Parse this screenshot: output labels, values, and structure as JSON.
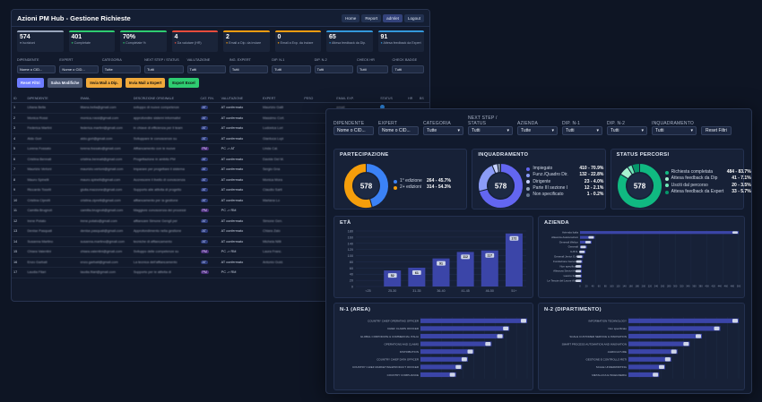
{
  "app": {
    "title": "Azioni PM Hub - Gestione Richieste",
    "nav": [
      "Home",
      "Report",
      "admlet",
      "Logout"
    ],
    "accent": "#6d7cff"
  },
  "cards": [
    {
      "value": "574",
      "label": "Iscrizioni",
      "color": "#9aa6bd"
    },
    {
      "value": "401",
      "label": "Completate",
      "color": "#2ecc71"
    },
    {
      "value": "70%",
      "label": "Completate %",
      "color": "#2ecc71"
    },
    {
      "value": "4",
      "label": "Da valutare (HR)",
      "color": "#e74c3c"
    },
    {
      "value": "2",
      "label": "Email a Dip. da inviare",
      "color": "#f39c12"
    },
    {
      "value": "0",
      "label": "Email a Exp. da inviare",
      "color": "#f39c12"
    },
    {
      "value": "65",
      "label": "Attesa feedback da Dip.",
      "color": "#3498db"
    },
    {
      "value": "91",
      "label": "Attesa feedback da Expert",
      "color": "#3498db"
    }
  ],
  "filters1": [
    {
      "label": "DIPENDENTE",
      "value": "Nome o CID..."
    },
    {
      "label": "EXPERT",
      "value": "Nome o CID..."
    },
    {
      "label": "CATEGORIA",
      "value": "Tutte"
    },
    {
      "label": "NEXT STEP / STATUS",
      "value": "Tutti"
    },
    {
      "label": "VALUTAZIONE",
      "value": "Tutti"
    },
    {
      "label": "ING. EXPERT",
      "value": "Tutti"
    },
    {
      "label": "DIP. N-1",
      "value": "Tutti"
    },
    {
      "label": "DIP. N-2",
      "value": "Tutti"
    },
    {
      "label": "CHECK HR",
      "value": "Tutti"
    },
    {
      "label": "CHECK BADGE",
      "value": "Tutti"
    }
  ],
  "actions": [
    {
      "label": "Reset Filtri",
      "color": "#6d7cff"
    },
    {
      "label": "Salva Modifiche",
      "color": "#4a5670"
    },
    {
      "label": "Invia Mail a Dip.",
      "color": "#f0a93b"
    },
    {
      "label": "Invia Mail a Expert",
      "color": "#f0a93b"
    },
    {
      "label": "Export Excel",
      "color": "#2ecc71"
    }
  ],
  "table": {
    "headers": [
      "ID",
      "DIPENDENTE",
      "EMAIL",
      "DESCRIZIONE ORIGINALE",
      "CAT. FIN.",
      "VALUTAZIONE",
      "EXPERT",
      "PESO",
      "EMAIL EXP.",
      "STATUS",
      "HR",
      "BS"
    ],
    "rows": [
      [
        "1",
        "Liliana Bella",
        "liliana.bella@gmail.com",
        "sviluppo di nuove competenze",
        "AT",
        "AT confermato",
        "Maurizio Galli",
        "",
        "email",
        "#2e86de"
      ],
      [
        "2",
        "Monica Rossi",
        "monica.rossi@gmail.com",
        "approfondire sistemi informativi",
        "AT",
        "AT confermato",
        "Massimo Cort.",
        "",
        "email",
        "#2ecc71"
      ],
      [
        "3",
        "Federica Martini",
        "federica.martini@gmail.com",
        "in chiave di efficienza per il team",
        "AT",
        "AT confermato",
        "Ludovica Lori",
        "",
        "email",
        "#2ecc71"
      ],
      [
        "4",
        "Aldo Gori",
        "aldo.gori@gmail.com",
        "Sviluppare le conoscenze su",
        "AT",
        "AT confermato",
        "Gianluca Lupi",
        "",
        "email",
        "#2e86de"
      ],
      [
        "5",
        "Lorena Fossato",
        "lorena.fossato@gmail.com",
        "Affiancamento con le nuove",
        "PM",
        "PC -> AT",
        "Linda Cal.",
        "",
        "email",
        "#2e86de"
      ],
      [
        "6",
        "Cristina Bennati",
        "cristina.bennati@gmail.com",
        "Progettazione in ambito PM",
        "AT",
        "AT confermato",
        "Davide Del M.",
        "",
        "email",
        "#2ecc71"
      ],
      [
        "7",
        "Maurizio Verloni",
        "maurizio.verloni@gmail.com",
        "Imparare per progettare il sistema",
        "AT",
        "AT confermato",
        "Sergio Gna",
        "",
        "email",
        "#2e86de"
      ],
      [
        "8",
        "Mauro Spinelli",
        "mauro.spinelli@gmail.com",
        "Accrescere il livello di conoscenza",
        "AT",
        "AT confermato",
        "Monica Mora",
        "",
        "email",
        "#2e86de"
      ],
      [
        "9",
        "Riccardo Toselli",
        "giulia.mazzone@gmail.com",
        "Supporto alle attivita di progetto",
        "AT",
        "AT confermato",
        "Claudio Sarti",
        "",
        "email",
        "#2e86de"
      ],
      [
        "10",
        "Cristina Ciprelli",
        "cristina.ciprelli@gmail.com",
        "affiancamento per la gestione",
        "AT",
        "AT confermato",
        "Mariana Lo",
        "",
        "email",
        "#2ecc71"
      ],
      [
        "11",
        "Camilla Brugnoli",
        "camilla.brugnoli@gmail.com",
        "Maggiore conoscenza dei processi",
        "PM",
        "PC -> RM",
        "",
        "",
        "email",
        "#2e86de"
      ],
      [
        "12",
        "Irene Potato",
        "irene.potato@gmail.com",
        "affiancare Simone Gengil per",
        "AT",
        "AT confermato",
        "Simone Gen.",
        "",
        "email",
        "#2ecc71"
      ],
      [
        "13",
        "Denise Pasquali",
        "denise.pasquali@gmail.com",
        "Approfondimento nella gestione",
        "AT",
        "AT confermato",
        "Chiara Zalo",
        "",
        "email",
        "#2ecc71"
      ],
      [
        "14",
        "Susanna Martino",
        "susanna.martino@gmail.com",
        "tecniche di affiancamento",
        "AT",
        "AT confermato",
        "Michela Nitti",
        "",
        "email",
        "#2e86de"
      ],
      [
        "15",
        "Chiara Valentini",
        "chiara.valentini@gmail.com",
        "Sviluppo delle competenze su",
        "PM",
        "PC -> RM",
        "Laura Franc.",
        "",
        "email",
        "#2e86de"
      ],
      [
        "16",
        "Enzo Garbati",
        "enzo.garbati@gmail.com",
        "La tecnica dell'affiancamento",
        "AT",
        "AT confermato",
        "Antonio Guid.",
        "",
        "email",
        "#2ecc71"
      ],
      [
        "17",
        "Laudia Filari",
        "laudia.filari@gmail.com",
        "Supporto per le attivita di",
        "PM",
        "PC -> RM",
        "",
        "",
        "email",
        "#2e86de"
      ]
    ]
  },
  "filters2": [
    {
      "label": "DIPENDENTE",
      "value": "Nome o CID...",
      "caret": ""
    },
    {
      "label": "EXPERT",
      "value": "Nome o CID...",
      "caret": ""
    },
    {
      "label": "CATEGORIA",
      "value": "Tutte",
      "caret": "▾"
    },
    {
      "label": "NEXT STEP / STATUS",
      "value": "Tutti",
      "caret": "▾"
    },
    {
      "label": "AZIENDA",
      "value": "Tutte",
      "caret": "▾"
    },
    {
      "label": "DIP. N-1",
      "value": "Tutti",
      "caret": "▾"
    },
    {
      "label": "DIP. N-2",
      "value": "Tutti",
      "caret": "▾"
    },
    {
      "label": "INQUADRAMENTO",
      "value": "Tutti",
      "caret": "▾"
    }
  ],
  "reset_label": "Reset Filtri",
  "chart_data": [
    {
      "type": "pie",
      "title": "PARTECIPAZIONE",
      "center": "578",
      "categories": [
        "1° edizione",
        "2+ edizioni"
      ],
      "values": [
        264,
        314
      ],
      "labels": [
        "264 - 45.7%",
        "314 - 54.3%"
      ],
      "colors": [
        "#3b82f6",
        "#f59e0b"
      ]
    },
    {
      "type": "pie",
      "title": "INQUADRAMENTO",
      "center": "578",
      "categories": [
        "Impiegato",
        "Funz./Quadro Dir.",
        "Dirigente",
        "Parte III sezione I",
        "Non specificato"
      ],
      "values": [
        410,
        132,
        23,
        12,
        1
      ],
      "labels": [
        "410 - 70.9%",
        "132 - 22.8%",
        "23 - 4.0%",
        "12 - 2.1%",
        "1 - 0.2%"
      ],
      "colors": [
        "#6366f1",
        "#8b9cf7",
        "#c7d2fe",
        "#94a3b8",
        "#64748b"
      ]
    },
    {
      "type": "pie",
      "title": "STATUS PERCORSI",
      "center": "578",
      "categories": [
        "Richiesta completata",
        "Attesa feedback da Dip",
        "Usciti dal percorso",
        "Attesa feedback da Expert"
      ],
      "values": [
        484,
        41,
        20,
        33
      ],
      "labels": [
        "484 - 83.7%",
        "41 - 7.1%",
        "20 - 3.5%",
        "33 - 5.7%"
      ],
      "colors": [
        "#10b981",
        "#a7f3d0",
        "#6ee7b7",
        "#059669"
      ]
    },
    {
      "type": "bar",
      "title": "ETÀ",
      "categories": [
        "<25",
        "25-30",
        "31-35",
        "36-40",
        "41-45",
        "46-50",
        "51+"
      ],
      "values": [
        0,
        52,
        61,
        91,
        112,
        117,
        172
      ],
      "ylim": [
        0,
        180
      ],
      "yticks": [
        "0",
        "20",
        "40",
        "60",
        "80",
        "100",
        "120",
        "140",
        "160",
        "180"
      ],
      "color": "#3b45a8"
    },
    {
      "type": "bar",
      "title": "AZIENDA",
      "orientation": "horizontal",
      "categories": [
        "Azienda Italia",
        "Alleanza Assicurazioni",
        "Generali Welion",
        "Generali",
        "G.B.S.",
        "Generali Jeniot G.A.",
        "Fondazione Generali",
        "Non specificato",
        "Alleanza Servizi Ass.",
        "Lavoro Italia",
        "Le Tenute del Leone Alato"
      ],
      "values": [
        520,
        48,
        38,
        22,
        18,
        10,
        8,
        6,
        5,
        3,
        2
      ],
      "xticks": [
        "0",
        "20",
        "40",
        "60",
        "80",
        "100",
        "120",
        "140",
        "160",
        "180",
        "200",
        "220",
        "240",
        "260",
        "280",
        "300",
        "320",
        "340",
        "360",
        "380",
        "400",
        "420",
        "440",
        "460",
        "480",
        "500"
      ],
      "color": "#3b45a8"
    },
    {
      "type": "bar",
      "title": "N-1 (AREA)",
      "orientation": "horizontal",
      "categories": [
        "COUNTRY CHIEF OPERATING OFFICER",
        "CHIEF CLAIMS OFFICER",
        "GLOBAL CORPORATE & COMMERCIAL ITALIA",
        "OPERATIONS AND CLAIMS",
        "DISTRIBUTION",
        "COUNTRY CHIEF DATA OFFICER",
        "COUNTRY CHIEF MARKETING&PRODUCT OFFICER",
        "COUNTRY COMPLIANCE"
      ],
      "values": [
        180,
        150,
        140,
        120,
        90,
        80,
        70,
        60
      ],
      "color": "#3b45a8"
    },
    {
      "type": "bar",
      "title": "N-2 (DIPARTIMENTO)",
      "orientation": "horizontal",
      "categories": [
        "INFORMATION TECHNOLOGY",
        "Non specificato",
        "SCALE CUSTOMER SERVICE & INNOVATION",
        "SMART PROCESS AUTOMATION AND INNOVATION",
        "AGRICULTURE",
        "GESTIONE E CONTROLLO RETI",
        "SCALE UNDERWRITING",
        "METALLICA E INGEGNERIA"
      ],
      "values": [
        90,
        75,
        60,
        50,
        40,
        35,
        30,
        25
      ],
      "color": "#3b45a8"
    }
  ]
}
